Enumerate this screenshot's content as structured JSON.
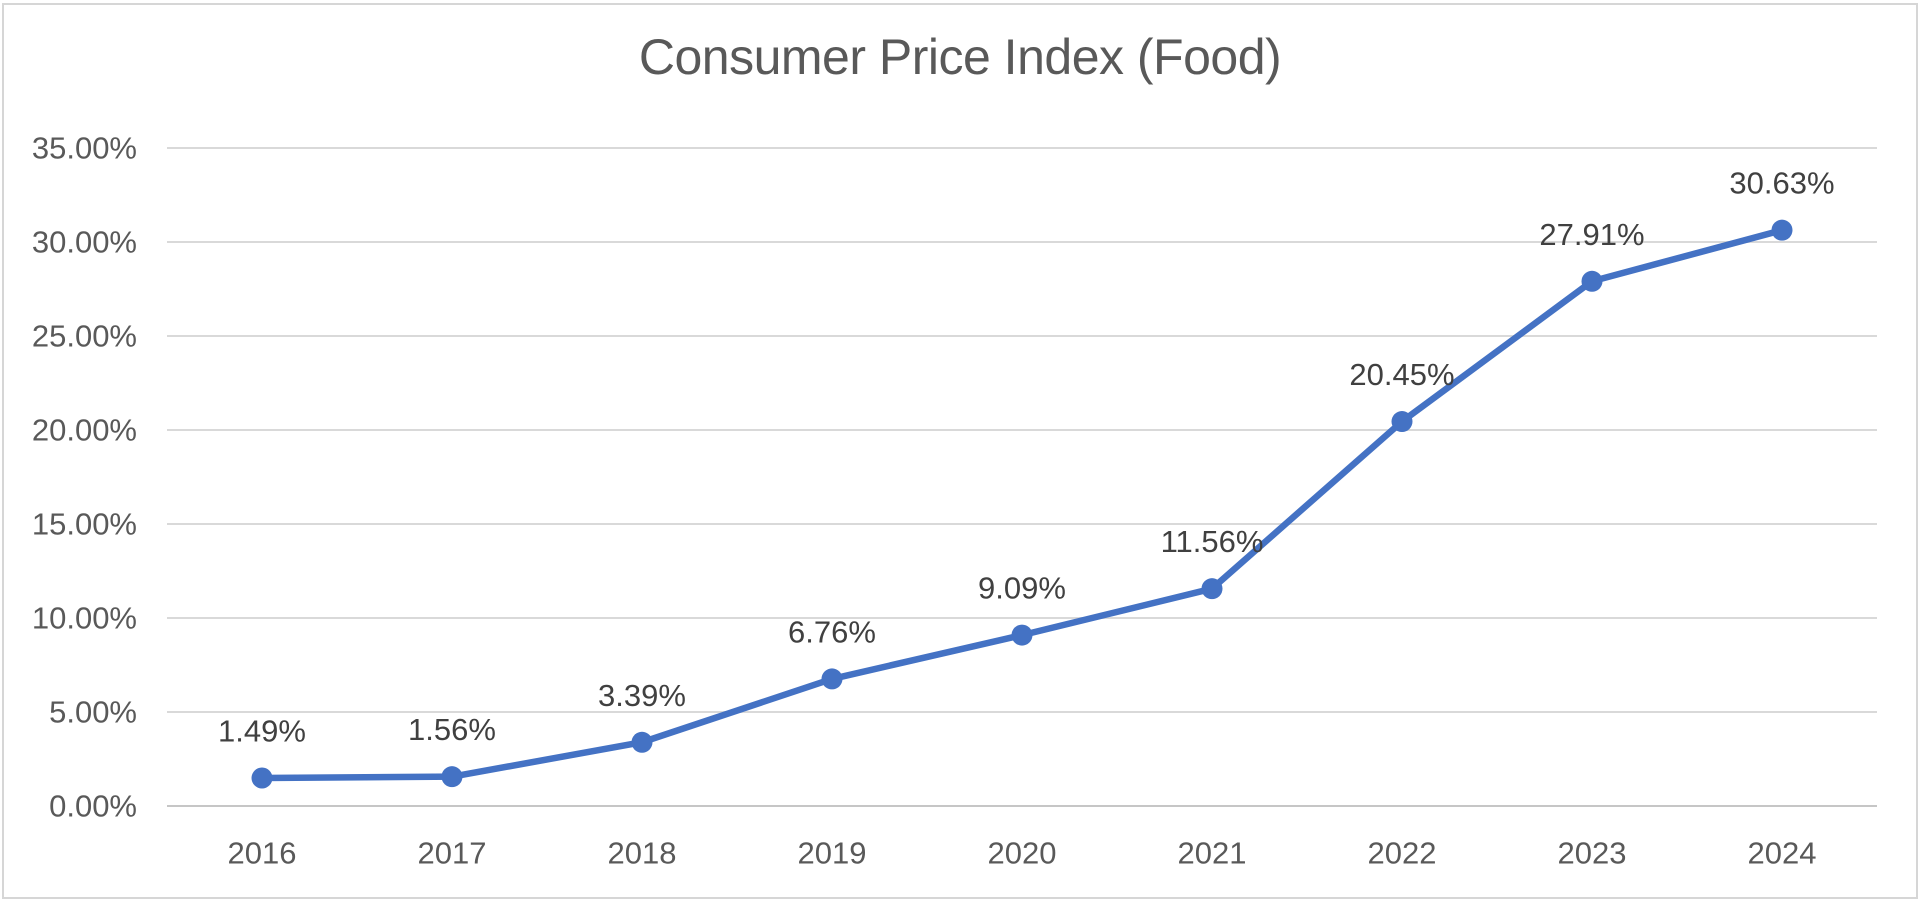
{
  "chart_data": {
    "type": "line",
    "title": "Consumer Price Index (Food)",
    "categories": [
      "2016",
      "2017",
      "2018",
      "2019",
      "2020",
      "2021",
      "2022",
      "2023",
      "2024"
    ],
    "values": [
      1.49,
      1.56,
      3.39,
      6.76,
      9.09,
      11.56,
      20.45,
      27.91,
      30.63
    ],
    "point_labels": [
      "1.49%",
      "1.56%",
      "3.39%",
      "6.76%",
      "9.09%",
      "11.56%",
      "20.45%",
      "27.91%",
      "30.63%"
    ],
    "yticks": [
      {
        "label": "0.00%",
        "value": 0
      },
      {
        "label": "5.00%",
        "value": 5
      },
      {
        "label": "10.00%",
        "value": 10
      },
      {
        "label": "15.00%",
        "value": 15
      },
      {
        "label": "20.00%",
        "value": 20
      },
      {
        "label": "25.00%",
        "value": 25
      },
      {
        "label": "30.00%",
        "value": 30
      },
      {
        "label": "35.00%",
        "value": 35
      }
    ],
    "ylim": [
      0,
      35
    ],
    "xlabel": "",
    "ylabel": "",
    "grid": true,
    "legend": false,
    "colors": {
      "line": "#4472C4",
      "marker": "#4472C4",
      "gridline": "#D9D9D9",
      "axis_line": "#C6C6C6",
      "title_text": "#595959",
      "tick_text": "#595959",
      "data_label_text": "#404040",
      "frame_border": "#D6D6D6",
      "background": "#FFFFFF"
    }
  }
}
